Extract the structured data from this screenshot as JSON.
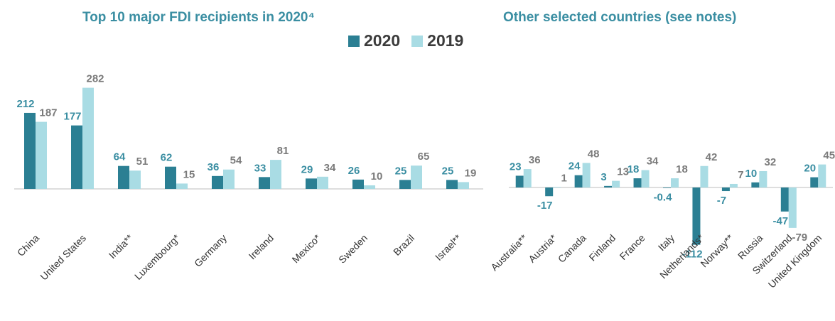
{
  "colors": {
    "accent_text": "#3a8ea2",
    "value_2019": "#7a7a7a",
    "axis": "#bcbcbc"
  },
  "legend": [
    {
      "label": "2020",
      "color": "#2b7f93"
    },
    {
      "label": "2019",
      "color": "#a9dce4"
    }
  ],
  "chart_data": [
    {
      "type": "bar",
      "title": "Top 10 major FDI recipients in 2020⁴",
      "categories": [
        "China",
        "United States",
        "India**",
        "Luxembourg*",
        "Germany",
        "Ireland",
        "Mexico*",
        "Sweden",
        "Brazil",
        "Israel**"
      ],
      "series": [
        {
          "name": "2020",
          "values": [
            212,
            177,
            64,
            62,
            36,
            33,
            29,
            26,
            25,
            25
          ]
        },
        {
          "name": "2019",
          "values": [
            187,
            282,
            51,
            15,
            54,
            81,
            34,
            10,
            65,
            19
          ]
        }
      ],
      "legend_position": "top"
    },
    {
      "type": "bar",
      "title": "Other selected countries (see notes)",
      "categories": [
        "Australia**",
        "Austria*",
        "Canada",
        "Finland",
        "France",
        "Italy",
        "Netherlands*",
        "Norway**",
        "Russia",
        "Switzerland",
        "United Kingdom"
      ],
      "series": [
        {
          "name": "2020",
          "values": [
            23,
            -17,
            24,
            3,
            18,
            -0.4,
            -112,
            -7,
            10,
            -47,
            20
          ]
        },
        {
          "name": "2019",
          "values": [
            36,
            1,
            48,
            13,
            34,
            18,
            42,
            7,
            32,
            -79,
            45
          ]
        }
      ],
      "legend_position": "top"
    }
  ]
}
